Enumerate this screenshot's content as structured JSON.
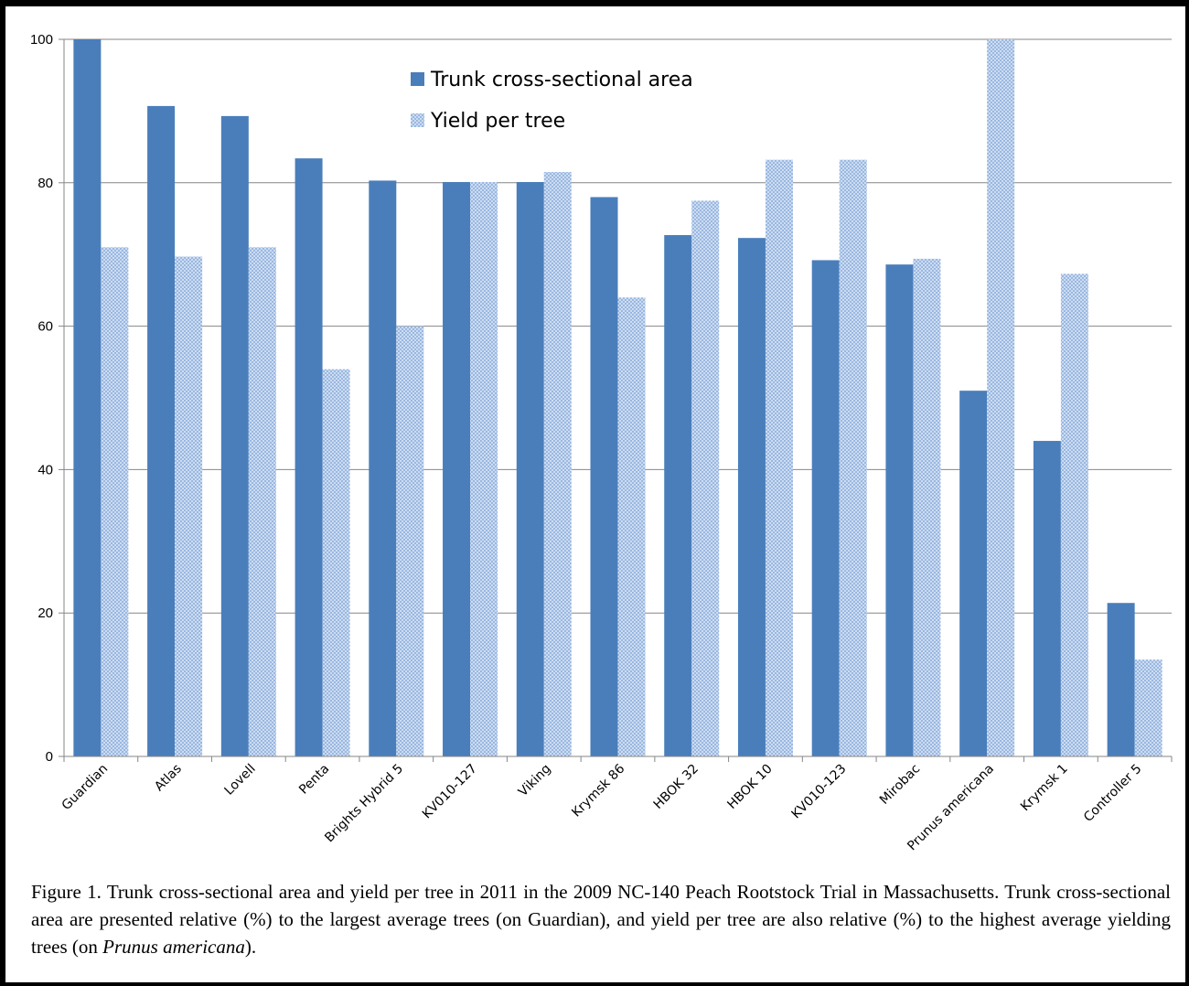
{
  "chart_data": {
    "type": "bar",
    "categories": [
      "Guardian",
      "Atlas",
      "Lovell",
      "Penta",
      "Brights Hybrid 5",
      "KV010-127",
      "Viking",
      "Krymsk 86",
      "HBOK 32",
      "HBOK 10",
      "KV010-123",
      "Mirobac",
      "Prunus americana",
      "Krymsk 1",
      "Controller 5"
    ],
    "series": [
      {
        "name": "Trunk cross-sectional area",
        "values": [
          100,
          90.7,
          89.3,
          83.4,
          80.3,
          80.1,
          80.1,
          78.0,
          72.7,
          72.3,
          69.2,
          68.6,
          51.0,
          44.0,
          21.4
        ],
        "color": "#4a7ebb",
        "pattern": "solid"
      },
      {
        "name": "Yield per tree",
        "values": [
          71.0,
          69.7,
          71.0,
          54.0,
          60.0,
          80.1,
          81.5,
          64.0,
          77.5,
          83.2,
          83.2,
          69.4,
          100,
          67.3,
          13.5
        ],
        "color": "#a9c3e6",
        "pattern": "crosshatch"
      }
    ],
    "ylim": [
      0,
      100
    ],
    "yticks": [
      0,
      20,
      40,
      60,
      80,
      100
    ],
    "grid": true,
    "legend": "top-center"
  },
  "caption": {
    "prefix": "Figure 1.  Trunk cross-sectional area and yield per tree in 2011 in the 2009 NC-140 Peach Rootstock Trial in Massachusetts.  Trunk cross-sectional area are presented relative (%) to the largest average trees (on Guardian), and yield per tree are also relative (%) to the highest average yielding trees (on ",
    "italic": "Prunus americana",
    "suffix": ")."
  }
}
